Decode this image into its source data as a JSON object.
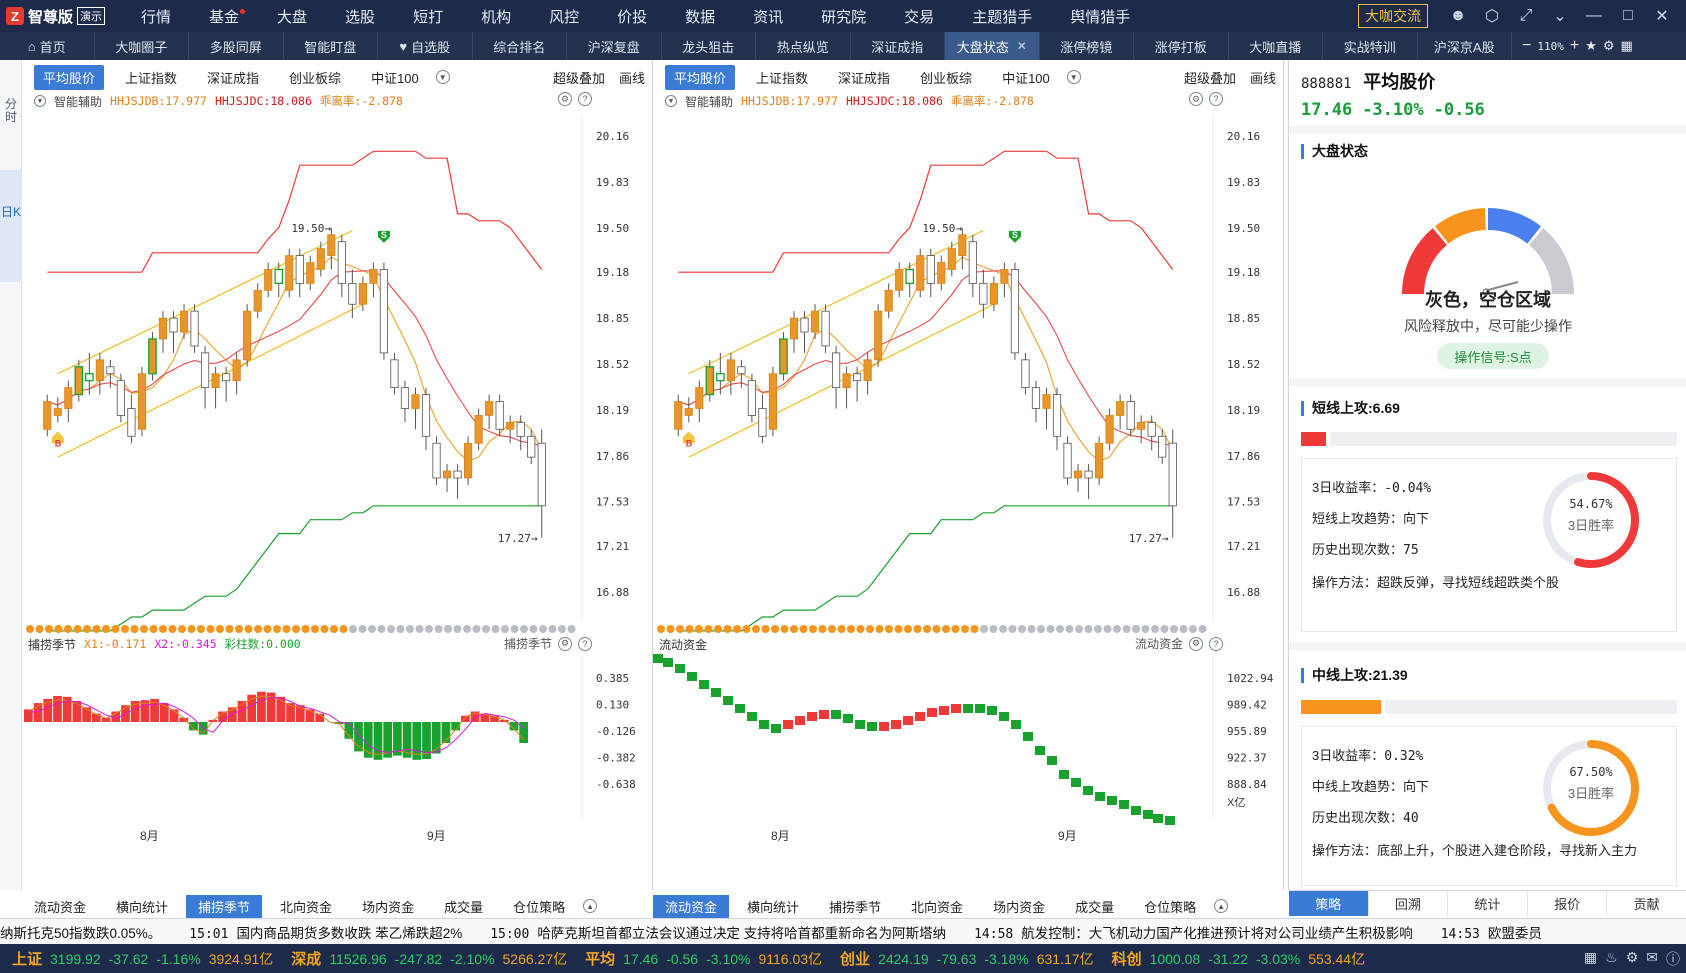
{
  "app": {
    "logo_text": "智尊版",
    "logo_mark": "Z",
    "demo_label": "演示",
    "menu": [
      "行情",
      "基金",
      "大盘",
      "选股",
      "短打",
      "机构",
      "风控",
      "价投",
      "数据",
      "资讯",
      "研究院",
      "交易",
      "主题猎手",
      "舆情猎手"
    ],
    "vip_button": "大咖交流",
    "window_icons": [
      "user-icon",
      "shield-icon",
      "shrink-icon",
      "chevron-down-icon",
      "minimize-icon",
      "maximize-icon",
      "close-icon"
    ]
  },
  "tabs": [
    "首页",
    "大咖圈子",
    "多股同屏",
    "智能盯盘",
    "自选股",
    "综合排名",
    "沪深复盘",
    "龙头狙击",
    "热点纵览",
    "深证成指",
    "大盘状态",
    "涨停榜镜",
    "涨停打板",
    "大咖直播",
    "实战特训",
    "沪深京A股"
  ],
  "active_tab_index": 10,
  "zoom": "110%",
  "left_rail": [
    "分时",
    "日K"
  ],
  "panes": [
    {
      "head_buttons": [
        "平均股价",
        "上证指数",
        "深证成指",
        "创业板综",
        "中证100"
      ],
      "head_right": [
        "超级叠加",
        "画线"
      ],
      "indicator_label": "智能辅助",
      "ind_a": "HHJSJDB:17.977",
      "ind_b": "HHJSJDC:18.086",
      "ind_c": "乖离率:-2.878",
      "sub_title": "捕捞季节",
      "sub_x1": "X1:-0.171",
      "sub_x2": "X2:-0.345",
      "sub_x3": "彩柱数:0.000",
      "sub_right": "捕捞季节",
      "sub_axis": [
        "0.385",
        "0.130",
        "-0.126",
        "-0.382",
        "-0.638"
      ],
      "bottom_tabs": [
        "流动资金",
        "横向统计",
        "捕捞季节",
        "北向资金",
        "场内资金",
        "成交量",
        "仓位策略"
      ],
      "bottom_sel": 2
    },
    {
      "head_buttons": [
        "平均股价",
        "上证指数",
        "深证成指",
        "创业板综",
        "中证100"
      ],
      "head_right": [
        "超级叠加",
        "画线"
      ],
      "indicator_label": "智能辅助",
      "ind_a": "HHJSJDB:17.977",
      "ind_b": "HHJSJDC:18.086",
      "ind_c": "乖离率:-2.878",
      "sub_title": "流动资金",
      "sub_x1": "",
      "sub_x2": "",
      "sub_x3": "",
      "sub_right": "流动资金",
      "sub_axis": [
        "1022.94",
        "989.42",
        "955.89",
        "922.37",
        "888.84"
      ],
      "sub_unit": "X亿",
      "bottom_tabs": [
        "流动资金",
        "横向统计",
        "捕捞季节",
        "北向资金",
        "场内资金",
        "成交量",
        "仓位策略"
      ],
      "bottom_sel": 0
    }
  ],
  "price_axis": [
    "20.16",
    "19.83",
    "19.50",
    "19.18",
    "18.85",
    "18.52",
    "18.19",
    "17.86",
    "17.53",
    "17.21",
    "16.88"
  ],
  "month_labels": [
    "8月",
    "9月"
  ],
  "annotations": {
    "high": "19.50",
    "low": "17.27",
    "buy": "B",
    "sell": "S"
  },
  "colors": {
    "up": "#e8952a",
    "down": "#ffffff",
    "red": "#f03a3a",
    "green": "#19a22e",
    "accent": "#3a7bd5"
  },
  "kline": {
    "ylim": [
      16.88,
      20.16
    ],
    "candles": [
      [
        18.05,
        18.25,
        18.0,
        18.3
      ],
      [
        18.15,
        18.2,
        18.1,
        18.28
      ],
      [
        18.2,
        18.35,
        18.1,
        18.4
      ],
      [
        18.3,
        18.5,
        18.25,
        18.55
      ],
      [
        18.45,
        18.4,
        18.3,
        18.6
      ],
      [
        18.4,
        18.55,
        18.3,
        18.6
      ],
      [
        18.5,
        18.45,
        18.35,
        18.55
      ],
      [
        18.4,
        18.15,
        18.1,
        18.45
      ],
      [
        18.2,
        18.0,
        17.95,
        18.3
      ],
      [
        18.05,
        18.45,
        18.0,
        18.5
      ],
      [
        18.45,
        18.7,
        18.4,
        18.75
      ],
      [
        18.7,
        18.85,
        18.6,
        18.9
      ],
      [
        18.85,
        18.75,
        18.6,
        18.9
      ],
      [
        18.75,
        18.9,
        18.7,
        18.95
      ],
      [
        18.9,
        18.65,
        18.6,
        18.95
      ],
      [
        18.6,
        18.35,
        18.2,
        18.65
      ],
      [
        18.35,
        18.45,
        18.2,
        18.5
      ],
      [
        18.45,
        18.4,
        18.25,
        18.5
      ],
      [
        18.4,
        18.55,
        18.3,
        18.6
      ],
      [
        18.55,
        18.9,
        18.5,
        18.95
      ],
      [
        18.9,
        19.05,
        18.85,
        19.1
      ],
      [
        19.05,
        19.2,
        19.0,
        19.25
      ],
      [
        19.2,
        19.1,
        19.0,
        19.25
      ],
      [
        19.05,
        19.3,
        19.0,
        19.35
      ],
      [
        19.3,
        19.1,
        19.0,
        19.35
      ],
      [
        19.1,
        19.25,
        19.05,
        19.3
      ],
      [
        19.2,
        19.35,
        19.15,
        19.4
      ],
      [
        19.3,
        19.45,
        19.2,
        19.5
      ],
      [
        19.4,
        19.1,
        19.0,
        19.45
      ],
      [
        19.1,
        18.95,
        18.85,
        19.2
      ],
      [
        18.95,
        19.1,
        18.9,
        19.15
      ],
      [
        19.1,
        19.2,
        19.0,
        19.25
      ],
      [
        19.2,
        18.6,
        18.55,
        19.25
      ],
      [
        18.55,
        18.35,
        18.3,
        18.6
      ],
      [
        18.35,
        18.2,
        18.1,
        18.4
      ],
      [
        18.2,
        18.3,
        18.05,
        18.35
      ],
      [
        18.3,
        18.0,
        17.9,
        18.35
      ],
      [
        17.95,
        17.7,
        17.65,
        18.0
      ],
      [
        17.7,
        17.75,
        17.6,
        17.8
      ],
      [
        17.75,
        17.7,
        17.55,
        17.8
      ],
      [
        17.7,
        17.95,
        17.65,
        18.0
      ],
      [
        17.95,
        18.15,
        17.9,
        18.2
      ],
      [
        18.15,
        18.25,
        18.05,
        18.3
      ],
      [
        18.25,
        18.05,
        18.0,
        18.3
      ],
      [
        18.05,
        18.1,
        17.95,
        18.15
      ],
      [
        18.1,
        18.0,
        17.9,
        18.15
      ],
      [
        18.0,
        17.85,
        17.8,
        18.05
      ],
      [
        17.95,
        17.5,
        17.27,
        18.05
      ]
    ]
  },
  "right_panel": {
    "code": "888881",
    "name": "平均股价",
    "price": "17.46",
    "pct": "-3.10%",
    "chg": "-0.56",
    "market_title": "大盘状态",
    "gauge_state": "灰色，空仓区域",
    "gauge_desc": "风险释放中，尽可能少操作",
    "signal": "操作信号:S点",
    "short": {
      "title": "短线上攻:6.69",
      "fill": 0.067,
      "fill_color": "#f03a3a",
      "rows": [
        {
          "k": "3日收益率：",
          "v": "-0.04%"
        },
        {
          "k": "短线上攻趋势：",
          "v": "向下"
        },
        {
          "k": "历史出现次数：",
          "v": "75"
        },
        {
          "k": "操作方法：",
          "v": "超跌反弹，寻找短线超跌类个股"
        }
      ],
      "ring_pct": "54.67%",
      "ring_value": 0.5467,
      "ring_label": "3日胜率",
      "ring_color": "#f03a3a"
    },
    "mid": {
      "title": "中线上攻:21.39",
      "fill": 0.214,
      "fill_color": "#f7941d",
      "rows": [
        {
          "k": "3日收益率：",
          "v": "0.32%"
        },
        {
          "k": "中线上攻趋势：",
          "v": "向下"
        },
        {
          "k": "历史出现次数：",
          "v": "40"
        },
        {
          "k": "操作方法：",
          "v": "底部上升，个股进入建仓阶段，寻找新入主力"
        }
      ],
      "ring_pct": "67.50%",
      "ring_value": 0.675,
      "ring_label": "3日胜率",
      "ring_color": "#f7941d"
    },
    "tabs": [
      "策略",
      "回溯",
      "统计",
      "报价",
      "贡献"
    ],
    "tab_sel": 0
  },
  "news": [
    {
      "time": "",
      "text": "纳斯托克50指数跌0.05%。"
    },
    {
      "time": "15:01",
      "text": "国内商品期货多数收跌 苯乙烯跌超2%"
    },
    {
      "time": "15:00",
      "text": "哈萨克斯坦首都立法会议通过决定 支持将哈首都重新命名为阿斯塔纳"
    },
    {
      "time": "14:58",
      "text": "航发控制：大飞机动力国产化推进预计将对公司业绩产生积极影响"
    },
    {
      "time": "14:53",
      "text": "欧盟委员"
    }
  ],
  "indices": [
    {
      "name": "上证",
      "val": "3199.92",
      "chg": "-37.62",
      "pct": "-1.16%",
      "amt": "3924.91亿"
    },
    {
      "name": "深成",
      "val": "11526.96",
      "chg": "-247.82",
      "pct": "-2.10%",
      "amt": "5266.27亿"
    },
    {
      "name": "平均",
      "val": "17.46",
      "chg": "-0.56",
      "pct": "-3.10%",
      "amt": "9116.03亿"
    },
    {
      "name": "创业",
      "val": "2424.19",
      "chg": "-79.63",
      "pct": "-3.18%",
      "amt": "631.17亿"
    },
    {
      "name": "科创",
      "val": "1000.08",
      "chg": "-31.22",
      "pct": "-3.03%",
      "amt": "553.44亿"
    }
  ]
}
